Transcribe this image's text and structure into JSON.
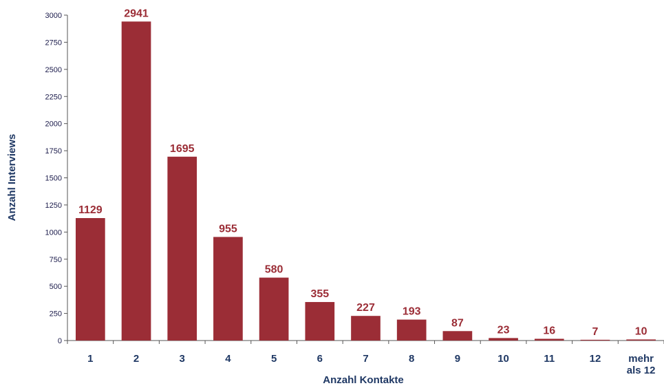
{
  "chart_data": {
    "type": "bar",
    "xlabel": "Anzahl Kontakte",
    "ylabel": "Anzahl Interviews",
    "ylim": [
      0,
      3000
    ],
    "yticks": [
      0,
      250,
      500,
      750,
      1000,
      1250,
      1500,
      1750,
      2000,
      2250,
      2500,
      2750,
      3000
    ],
    "grid": false,
    "bar_color": "#9b2d36",
    "categories": [
      [
        "1"
      ],
      [
        "2"
      ],
      [
        "3"
      ],
      [
        "4"
      ],
      [
        "5"
      ],
      [
        "6"
      ],
      [
        "7"
      ],
      [
        "8"
      ],
      [
        "9"
      ],
      [
        "10"
      ],
      [
        "11"
      ],
      [
        "12"
      ],
      [
        "mehr",
        "als 12"
      ]
    ],
    "values": [
      1129,
      2941,
      1695,
      955,
      580,
      355,
      227,
      193,
      87,
      23,
      16,
      7,
      10
    ]
  }
}
